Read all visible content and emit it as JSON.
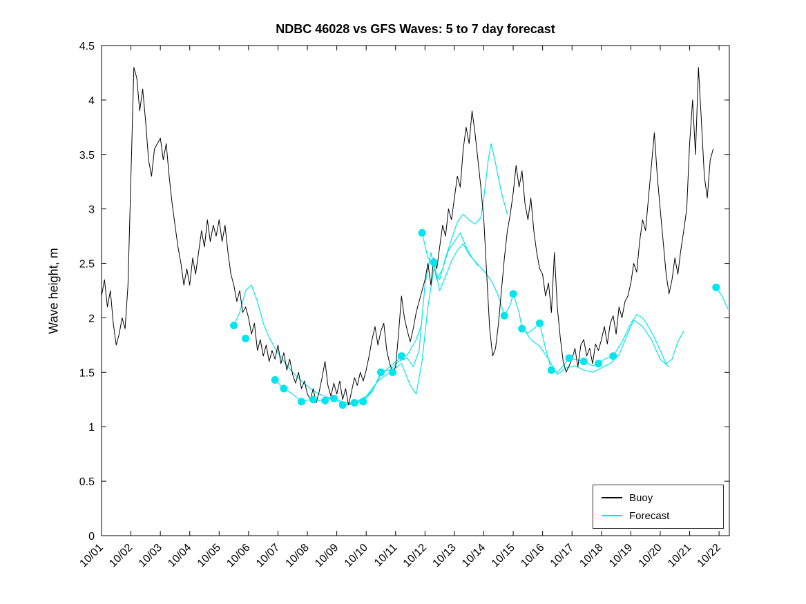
{
  "chart_data": {
    "type": "line",
    "title": "NDBC 46028 vs GFS Waves: 5 to 7 day forecast",
    "xlabel": "",
    "ylabel": "Wave height, m",
    "ylim": [
      0,
      4.5
    ],
    "xlim_days": [
      1,
      22.35
    ],
    "grid": false,
    "yticks": {
      "values": [
        0,
        0.5,
        1,
        1.5,
        2,
        2.5,
        3,
        3.5,
        4,
        4.5
      ],
      "labels": [
        "0",
        "0.5",
        "1",
        "1.5",
        "2",
        "2.5",
        "3",
        "3.5",
        "4",
        "4.5"
      ]
    },
    "xticks": {
      "values": [
        1,
        2,
        3,
        4,
        5,
        6,
        7,
        8,
        9,
        10,
        11,
        12,
        13,
        14,
        15,
        16,
        17,
        18,
        19,
        20,
        21,
        22
      ],
      "labels": [
        "10/01",
        "10/02",
        "10/03",
        "10/04",
        "10/05",
        "10/06",
        "10/07",
        "10/08",
        "10/09",
        "10/10",
        "10/11",
        "10/12",
        "10/13",
        "10/14",
        "10/15",
        "10/16",
        "10/17",
        "10/18",
        "10/19",
        "10/20",
        "10/21",
        "10/22"
      ]
    },
    "legend": {
      "position": "bottom-right",
      "entries": [
        {
          "label": "Buoy",
          "color": "#000000"
        },
        {
          "label": "Forecast",
          "color": "#00E5EE"
        }
      ]
    },
    "series": [
      {
        "name": "Buoy",
        "type": "line",
        "color": "#000000",
        "x_start": 1.0,
        "x_step": 0.1,
        "values": [
          2.2,
          2.35,
          2.1,
          2.25,
          1.95,
          1.75,
          1.85,
          2.0,
          1.9,
          2.3,
          3.3,
          4.3,
          4.2,
          3.9,
          4.1,
          3.8,
          3.45,
          3.3,
          3.55,
          3.6,
          3.65,
          3.45,
          3.6,
          3.3,
          3.05,
          2.85,
          2.65,
          2.5,
          2.3,
          2.45,
          2.3,
          2.55,
          2.4,
          2.6,
          2.8,
          2.65,
          2.9,
          2.7,
          2.85,
          2.75,
          2.9,
          2.7,
          2.85,
          2.6,
          2.4,
          2.3,
          2.15,
          2.25,
          2.05,
          2.1,
          2.0,
          1.85,
          1.95,
          1.7,
          1.8,
          1.65,
          1.75,
          1.6,
          1.7,
          1.62,
          1.75,
          1.58,
          1.68,
          1.52,
          1.62,
          1.48,
          1.4,
          1.5,
          1.35,
          1.42,
          1.3,
          1.25,
          1.35,
          1.22,
          1.32,
          1.45,
          1.6,
          1.38,
          1.28,
          1.4,
          1.3,
          1.42,
          1.25,
          1.35,
          1.2,
          1.32,
          1.45,
          1.38,
          1.5,
          1.42,
          1.52,
          1.65,
          1.8,
          1.92,
          1.75,
          1.88,
          1.95,
          1.7,
          1.58,
          1.5,
          1.55,
          1.85,
          2.2,
          2.0,
          1.88,
          1.78,
          1.9,
          2.05,
          2.15,
          2.25,
          2.35,
          2.5,
          2.3,
          2.55,
          2.45,
          2.65,
          2.85,
          2.75,
          3.0,
          2.9,
          3.1,
          3.3,
          3.2,
          3.55,
          3.75,
          3.6,
          3.9,
          3.7,
          3.45,
          3.2,
          2.9,
          2.4,
          1.9,
          1.65,
          1.72,
          1.95,
          2.25,
          2.55,
          2.8,
          2.95,
          3.15,
          3.4,
          3.2,
          3.35,
          3.05,
          2.9,
          3.1,
          2.8,
          2.6,
          2.45,
          2.4,
          2.2,
          2.32,
          2.05,
          2.6,
          2.1,
          1.82,
          1.6,
          1.5,
          1.56,
          1.62,
          1.72,
          1.55,
          1.75,
          1.8,
          1.65,
          1.72,
          1.58,
          1.76,
          1.7,
          1.8,
          1.92,
          1.76,
          1.95,
          2.02,
          1.85,
          2.1,
          2.0,
          2.15,
          2.2,
          2.32,
          2.5,
          2.42,
          2.7,
          2.9,
          2.8,
          3.1,
          3.4,
          3.7,
          3.3,
          3.0,
          2.7,
          2.4,
          2.22,
          2.35,
          2.55,
          2.4,
          2.62,
          2.8,
          3.0,
          3.6,
          4.0,
          3.5,
          4.3,
          3.8,
          3.3,
          3.1,
          3.45,
          3.55
        ]
      },
      {
        "name": "Forecast",
        "type": "line-with-markers",
        "color": "#00E5EE",
        "lines": [
          [
            [
              5.5,
              1.93
            ],
            [
              5.7,
              2.05
            ],
            [
              5.9,
              2.25
            ],
            [
              6.1,
              2.3
            ],
            [
              6.3,
              2.15
            ],
            [
              6.5,
              1.95
            ],
            [
              6.7,
              1.82
            ],
            [
              6.9,
              1.72
            ],
            [
              7.2,
              1.6
            ],
            [
              7.5,
              1.5
            ],
            [
              7.8,
              1.42
            ],
            [
              8.1,
              1.35
            ],
            [
              8.4,
              1.3
            ],
            [
              8.7,
              1.27
            ],
            [
              9.0,
              1.25
            ],
            [
              9.3,
              1.22
            ],
            [
              9.6,
              1.22
            ],
            [
              9.9,
              1.25
            ],
            [
              10.2,
              1.33
            ],
            [
              10.5,
              1.48
            ],
            [
              10.8,
              1.55
            ],
            [
              11.1,
              1.62
            ],
            [
              11.4,
              1.66
            ],
            [
              11.7,
              1.8
            ],
            [
              11.9,
              1.95
            ]
          ],
          [
            [
              6.9,
              1.43
            ],
            [
              7.2,
              1.35
            ],
            [
              7.5,
              1.3
            ],
            [
              7.8,
              1.23
            ],
            [
              8.1,
              1.25
            ],
            [
              8.4,
              1.24
            ],
            [
              8.7,
              1.26
            ],
            [
              9.0,
              1.24
            ],
            [
              9.3,
              1.2
            ],
            [
              9.6,
              1.21
            ],
            [
              9.9,
              1.23
            ],
            [
              10.2,
              1.32
            ],
            [
              10.5,
              1.5
            ],
            [
              10.8,
              1.52
            ],
            [
              11.1,
              1.6
            ],
            [
              11.4,
              1.63
            ],
            [
              11.6,
              1.55
            ],
            [
              11.8,
              1.7
            ],
            [
              12.0,
              2.3
            ],
            [
              12.2,
              2.6
            ],
            [
              12.4,
              2.35
            ],
            [
              12.6,
              2.45
            ],
            [
              12.8,
              2.62
            ],
            [
              13.0,
              2.7
            ],
            [
              13.2,
              2.78
            ],
            [
              13.4,
              2.65
            ],
            [
              13.6,
              2.55
            ],
            [
              13.8,
              2.48
            ]
          ],
          [
            [
              9.2,
              1.2
            ],
            [
              9.6,
              1.22
            ],
            [
              10.0,
              1.28
            ],
            [
              10.4,
              1.42
            ],
            [
              10.8,
              1.5
            ],
            [
              11.2,
              1.58
            ],
            [
              11.5,
              1.38
            ],
            [
              11.7,
              1.3
            ],
            [
              11.9,
              1.6
            ],
            [
              12.1,
              2.1
            ],
            [
              12.3,
              2.45
            ],
            [
              12.5,
              2.35
            ],
            [
              12.7,
              2.55
            ],
            [
              12.9,
              2.72
            ],
            [
              13.1,
              2.88
            ],
            [
              13.3,
              2.95
            ],
            [
              13.5,
              2.9
            ],
            [
              13.7,
              2.86
            ],
            [
              13.9,
              2.92
            ],
            [
              14.0,
              3.1
            ],
            [
              14.15,
              3.45
            ],
            [
              14.25,
              3.6
            ],
            [
              14.4,
              3.42
            ],
            [
              14.6,
              3.15
            ],
            [
              14.8,
              2.95
            ]
          ],
          [
            [
              11.9,
              2.78
            ],
            [
              12.1,
              2.55
            ],
            [
              12.3,
              2.51
            ],
            [
              12.5,
              2.25
            ],
            [
              12.7,
              2.38
            ],
            [
              12.9,
              2.52
            ],
            [
              13.1,
              2.62
            ],
            [
              13.3,
              2.68
            ],
            [
              13.5,
              2.58
            ],
            [
              13.7,
              2.52
            ],
            [
              13.9,
              2.46
            ],
            [
              14.1,
              2.4
            ],
            [
              14.3,
              2.32
            ],
            [
              14.5,
              2.2
            ],
            [
              14.7,
              2.02
            ],
            [
              14.9,
              2.12
            ],
            [
              15.0,
              2.22
            ],
            [
              15.2,
              2.05
            ],
            [
              15.3,
              1.9
            ],
            [
              15.5,
              1.86
            ],
            [
              15.7,
              1.9
            ],
            [
              15.9,
              1.95
            ],
            [
              16.1,
              1.72
            ],
            [
              16.3,
              1.52
            ],
            [
              16.5,
              1.5
            ],
            [
              16.7,
              1.56
            ],
            [
              16.9,
              1.63
            ],
            [
              17.1,
              1.62
            ],
            [
              17.4,
              1.6
            ],
            [
              17.7,
              1.56
            ],
            [
              17.9,
              1.58
            ],
            [
              18.1,
              1.62
            ],
            [
              18.4,
              1.65
            ],
            [
              18.7,
              1.78
            ],
            [
              19.0,
              1.95
            ],
            [
              19.2,
              2.03
            ],
            [
              19.4,
              2.0
            ],
            [
              19.6,
              1.92
            ],
            [
              19.8,
              1.82
            ],
            [
              20.0,
              1.7
            ],
            [
              20.2,
              1.58
            ],
            [
              20.4,
              1.62
            ],
            [
              20.6,
              1.78
            ],
            [
              20.8,
              1.88
            ]
          ],
          [
            [
              15.3,
              1.92
            ],
            [
              15.6,
              1.8
            ],
            [
              15.9,
              1.74
            ],
            [
              16.2,
              1.62
            ],
            [
              16.5,
              1.48
            ],
            [
              16.8,
              1.54
            ],
            [
              17.1,
              1.56
            ],
            [
              17.4,
              1.52
            ],
            [
              17.7,
              1.5
            ],
            [
              18.0,
              1.54
            ],
            [
              18.3,
              1.58
            ],
            [
              18.6,
              1.66
            ],
            [
              18.9,
              1.86
            ],
            [
              19.1,
              1.98
            ],
            [
              19.4,
              1.92
            ],
            [
              19.7,
              1.8
            ],
            [
              20.0,
              1.62
            ],
            [
              20.3,
              1.55
            ]
          ],
          [
            [
              21.9,
              2.28
            ],
            [
              22.1,
              2.2
            ],
            [
              22.3,
              2.08
            ]
          ]
        ],
        "markers": [
          [
            5.5,
            1.93
          ],
          [
            5.9,
            1.81
          ],
          [
            6.9,
            1.43
          ],
          [
            7.2,
            1.35
          ],
          [
            7.8,
            1.23
          ],
          [
            8.2,
            1.25
          ],
          [
            8.6,
            1.24
          ],
          [
            8.9,
            1.26
          ],
          [
            9.2,
            1.2
          ],
          [
            9.6,
            1.22
          ],
          [
            9.9,
            1.23
          ],
          [
            10.5,
            1.5
          ],
          [
            10.9,
            1.5
          ],
          [
            11.2,
            1.65
          ],
          [
            11.9,
            2.78
          ],
          [
            12.3,
            2.51
          ],
          [
            14.7,
            2.02
          ],
          [
            15.0,
            2.22
          ],
          [
            15.3,
            1.9
          ],
          [
            15.9,
            1.95
          ],
          [
            16.3,
            1.52
          ],
          [
            16.9,
            1.63
          ],
          [
            17.4,
            1.6
          ],
          [
            17.9,
            1.58
          ],
          [
            18.4,
            1.65
          ],
          [
            21.9,
            2.28
          ]
        ]
      }
    ]
  }
}
